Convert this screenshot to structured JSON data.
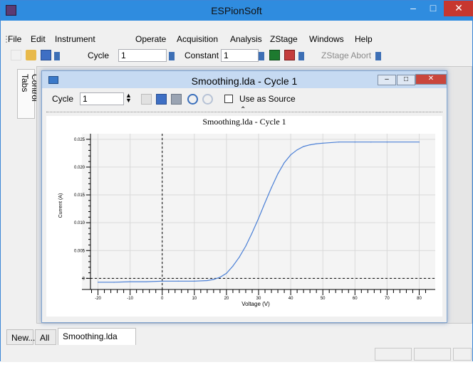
{
  "app": {
    "title": "ESPionSoft"
  },
  "menu": [
    "File",
    "Edit",
    "Instrument",
    "Operate",
    "Acquisition",
    "Analysis",
    "ZStage",
    "Windows",
    "Help"
  ],
  "toolbar": {
    "cycle_label": "Cycle",
    "cycle_value": "1",
    "mode_value": "Constant",
    "mode_number": "1",
    "zstage_abort": "ZStage Abort"
  },
  "sidebar": {
    "control_tabs": "Control Tabs"
  },
  "child": {
    "title": "Smoothing.lda - Cycle 1",
    "cycle_label": "Cycle",
    "cycle_value": "1",
    "use_as_source": "Use as Source"
  },
  "chart_data": {
    "type": "line",
    "title": "Smoothing.lda - Cycle 1",
    "xlabel": "Voltage (V)",
    "ylabel": "Current (A)",
    "xlim": [
      -25,
      85
    ],
    "ylim": [
      -0.002,
      0.026
    ],
    "x_ticks": [
      -20,
      -10,
      0,
      10,
      20,
      30,
      40,
      50,
      60,
      70,
      80
    ],
    "x_tick_labels": [
      "-20",
      "-10",
      "0",
      "10",
      "20",
      "30",
      "40",
      "50",
      "60",
      "70",
      "80"
    ],
    "y_ticks": [
      0,
      0.005,
      0.01,
      0.015,
      0.02,
      0.025
    ],
    "y_tick_labels": [
      "0",
      "0.005",
      "0.010",
      "0.015",
      "0.020",
      "0.025"
    ],
    "grid": true,
    "series": [
      {
        "color": "#4a7fd6",
        "x": [
          -20,
          -15,
          -10,
          -5,
          0,
          5,
          10,
          14,
          16,
          18,
          20,
          22,
          24,
          26,
          28,
          30,
          32,
          34,
          36,
          38,
          40,
          42,
          44,
          46,
          48,
          50,
          55,
          60,
          65,
          70,
          80
        ],
        "y": [
          -0.0007,
          -0.0007,
          -0.0006,
          -0.0006,
          -0.0005,
          -0.0005,
          -0.0005,
          -0.0004,
          -0.0002,
          0.0002,
          0.0009,
          0.0022,
          0.0038,
          0.0058,
          0.0082,
          0.0108,
          0.0136,
          0.0163,
          0.0188,
          0.0208,
          0.0222,
          0.0231,
          0.0237,
          0.024,
          0.0242,
          0.0243,
          0.0245,
          0.0245,
          0.0245,
          0.0245,
          0.0245
        ]
      }
    ],
    "reference_lines": {
      "vertical_x": 0,
      "horizontal_y": 0
    }
  },
  "bottom_tabs": [
    "New...",
    "All",
    "Smoothing.lda"
  ],
  "colors": {
    "titlebar": "#2f8cdf",
    "close": "#c7372f",
    "curve": "#4a7fd6"
  }
}
